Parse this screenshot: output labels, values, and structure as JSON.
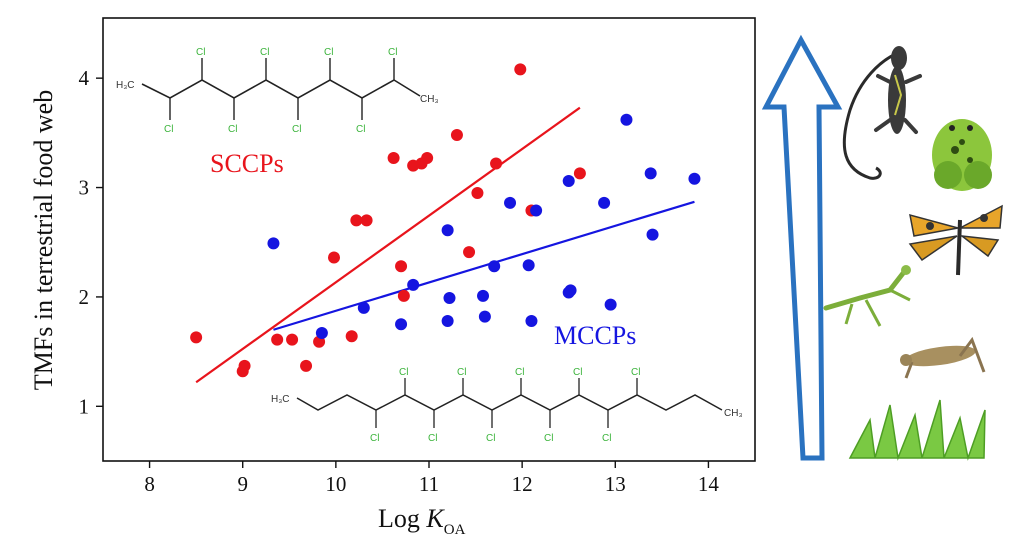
{
  "chart_data": {
    "type": "scatter",
    "xlabel_main": "Log ",
    "xlabel_italic": "K",
    "xlabel_sub": "OA",
    "ylabel": "TMFs in terrestrial food web",
    "xlim": [
      7.5,
      14.5
    ],
    "ylim": [
      0.5,
      4.55
    ],
    "xticks": [
      8,
      9,
      10,
      11,
      12,
      13,
      14
    ],
    "yticks": [
      1,
      2,
      3,
      4
    ],
    "series": [
      {
        "name": "SCCPs",
        "color": "#e8141c",
        "points": [
          [
            8.5,
            1.63
          ],
          [
            9.0,
            1.32
          ],
          [
            9.02,
            1.37
          ],
          [
            9.37,
            1.61
          ],
          [
            9.53,
            1.61
          ],
          [
            9.68,
            1.37
          ],
          [
            9.82,
            1.59
          ],
          [
            9.98,
            2.36
          ],
          [
            10.17,
            1.64
          ],
          [
            10.22,
            2.7
          ],
          [
            10.33,
            2.7
          ],
          [
            10.62,
            3.27
          ],
          [
            10.7,
            2.28
          ],
          [
            10.73,
            2.01
          ],
          [
            10.83,
            3.2
          ],
          [
            10.92,
            3.22
          ],
          [
            10.98,
            3.27
          ],
          [
            11.3,
            3.48
          ],
          [
            11.43,
            2.41
          ],
          [
            11.52,
            2.95
          ],
          [
            11.72,
            3.22
          ],
          [
            11.98,
            4.08
          ],
          [
            12.1,
            2.79
          ],
          [
            12.62,
            3.13
          ]
        ],
        "fit": [
          [
            8.5,
            1.22
          ],
          [
            12.62,
            3.73
          ]
        ]
      },
      {
        "name": "MCCPs",
        "color": "#1515e0",
        "points": [
          [
            9.33,
            2.49
          ],
          [
            9.85,
            1.67
          ],
          [
            10.3,
            1.9
          ],
          [
            10.7,
            1.75
          ],
          [
            10.83,
            2.11
          ],
          [
            11.2,
            2.61
          ],
          [
            11.2,
            1.78
          ],
          [
            11.22,
            1.99
          ],
          [
            11.58,
            2.01
          ],
          [
            11.6,
            1.82
          ],
          [
            11.7,
            2.28
          ],
          [
            11.87,
            2.86
          ],
          [
            12.07,
            2.29
          ],
          [
            12.1,
            1.78
          ],
          [
            12.15,
            2.79
          ],
          [
            12.5,
            3.06
          ],
          [
            12.5,
            2.04
          ],
          [
            12.52,
            2.06
          ],
          [
            12.88,
            2.86
          ],
          [
            12.95,
            1.93
          ],
          [
            13.12,
            3.62
          ],
          [
            13.38,
            3.13
          ],
          [
            13.4,
            2.57
          ],
          [
            13.85,
            3.08
          ]
        ],
        "fit": [
          [
            9.33,
            1.7
          ],
          [
            13.85,
            2.87
          ]
        ]
      }
    ]
  },
  "sccp_structure": {
    "cl": "Cl",
    "ch3_left": "H₃C",
    "ch3_right": "CH₃"
  },
  "mccp_structure": {
    "cl": "Cl",
    "ch3_left": "H₃C",
    "ch3_right": "CH₃"
  },
  "food_web_icons": [
    "lizard-icon",
    "frog-icon",
    "dragonfly-icon",
    "mantis-icon",
    "grasshopper-icon",
    "grass-icon"
  ]
}
